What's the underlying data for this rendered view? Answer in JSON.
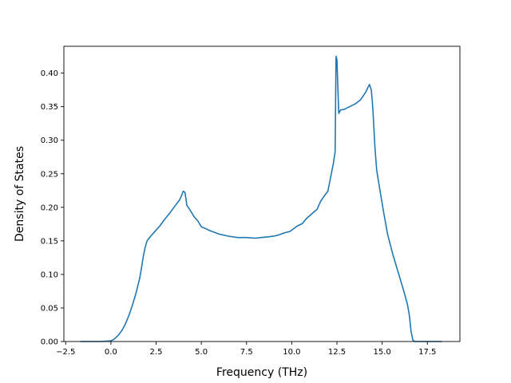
{
  "chart_data": {
    "type": "line",
    "title": "",
    "xlabel": "Frequency (THz)",
    "ylabel": "Density of States",
    "xlim": [
      -2.6,
      19.3
    ],
    "ylim": [
      0.0,
      0.44
    ],
    "xticks": [
      -2.5,
      0.0,
      2.5,
      5.0,
      7.5,
      10.0,
      12.5,
      15.0,
      17.5
    ],
    "xtick_labels": [
      "−2.5",
      "0.0",
      "2.5",
      "5.0",
      "7.5",
      "10.0",
      "12.5",
      "15.0",
      "17.5"
    ],
    "yticks": [
      0.0,
      0.05,
      0.1,
      0.15,
      0.2,
      0.25,
      0.3,
      0.35,
      0.4
    ],
    "ytick_labels": [
      "0.00",
      "0.05",
      "0.10",
      "0.15",
      "0.20",
      "0.25",
      "0.30",
      "0.35",
      "0.40"
    ],
    "grid": false,
    "legend": "none",
    "color": "#1f77b4",
    "series": [
      {
        "x": [
          -1.7,
          -1.0,
          -0.5,
          0.0,
          0.2,
          0.4,
          0.6,
          0.8,
          1.0,
          1.2,
          1.4,
          1.6,
          1.7,
          1.8,
          1.9,
          2.0,
          2.2,
          2.4,
          2.7,
          3.0,
          3.3,
          3.6,
          3.8,
          3.9,
          4.0,
          4.1,
          4.2,
          4.4,
          4.6,
          4.8,
          5.0,
          5.5,
          6.0,
          6.5,
          7.0,
          7.5,
          8.0,
          8.3,
          8.7,
          9.0,
          9.3,
          9.6,
          9.9,
          10.1,
          10.3,
          10.6,
          10.8,
          11.1,
          11.4,
          11.6,
          11.8,
          12.0,
          12.3,
          12.4,
          12.45,
          12.5,
          12.6,
          12.7,
          12.9,
          13.2,
          13.5,
          13.8,
          14.0,
          14.1,
          14.2,
          14.3,
          14.4,
          14.45,
          14.5,
          14.6,
          14.7,
          14.9,
          15.1,
          15.3,
          15.6,
          15.9,
          16.2,
          16.4,
          16.5,
          16.6,
          16.7,
          16.8,
          17.5,
          18.3
        ],
        "y": [
          0.0,
          0.0,
          0.0,
          0.001,
          0.004,
          0.009,
          0.016,
          0.026,
          0.039,
          0.055,
          0.073,
          0.095,
          0.111,
          0.128,
          0.141,
          0.15,
          0.157,
          0.163,
          0.172,
          0.183,
          0.193,
          0.204,
          0.211,
          0.217,
          0.224,
          0.222,
          0.203,
          0.195,
          0.186,
          0.18,
          0.171,
          0.165,
          0.16,
          0.157,
          0.155,
          0.155,
          0.154,
          0.155,
          0.156,
          0.157,
          0.159,
          0.162,
          0.164,
          0.168,
          0.172,
          0.176,
          0.183,
          0.19,
          0.197,
          0.209,
          0.217,
          0.224,
          0.265,
          0.283,
          0.425,
          0.42,
          0.34,
          0.345,
          0.346,
          0.35,
          0.354,
          0.36,
          0.368,
          0.372,
          0.378,
          0.383,
          0.375,
          0.36,
          0.34,
          0.29,
          0.255,
          0.222,
          0.19,
          0.16,
          0.129,
          0.102,
          0.075,
          0.055,
          0.04,
          0.015,
          0.002,
          0.0,
          0.0,
          0.0
        ]
      }
    ]
  }
}
